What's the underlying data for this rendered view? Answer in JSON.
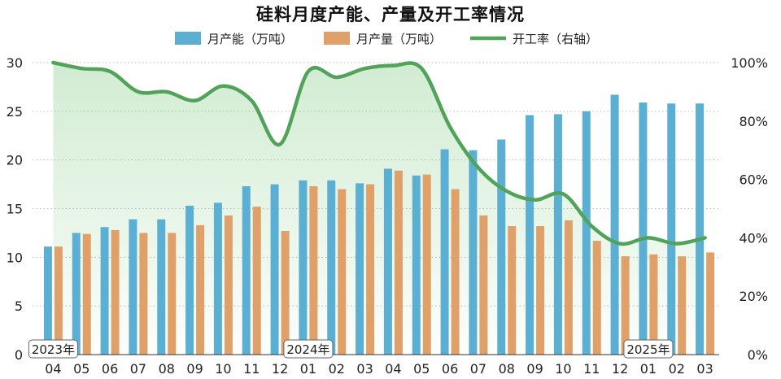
{
  "chart_data": {
    "type": "bar",
    "title": "硅料月度产能、产量及开工率情况",
    "categories": [
      "04",
      "05",
      "06",
      "07",
      "08",
      "09",
      "10",
      "11",
      "12",
      "01",
      "02",
      "03",
      "04",
      "05",
      "06",
      "07",
      "08",
      "09",
      "10",
      "11",
      "12",
      "01",
      "02",
      "03"
    ],
    "year_labels": [
      {
        "label": "2023年",
        "category_index": 0
      },
      {
        "label": "2024年",
        "category_index": 9
      },
      {
        "label": "2025年",
        "category_index": 21
      }
    ],
    "series": [
      {
        "name": "月产能（万吨）",
        "type": "bar",
        "axis": "left",
        "color": "#5AAFD3",
        "values": [
          11.1,
          12.5,
          13.1,
          13.9,
          13.9,
          15.3,
          15.6,
          17.3,
          17.5,
          17.9,
          17.9,
          17.6,
          19.1,
          18.4,
          21.1,
          21.0,
          22.1,
          24.6,
          24.7,
          25.0,
          26.7,
          25.9,
          25.8,
          25.8
        ]
      },
      {
        "name": "月产量（万吨）",
        "type": "bar",
        "axis": "left",
        "color": "#E0A06A",
        "values": [
          11.1,
          12.4,
          12.8,
          12.5,
          12.5,
          13.3,
          14.3,
          15.2,
          12.7,
          17.3,
          17.0,
          17.5,
          18.9,
          18.5,
          17.0,
          14.3,
          13.2,
          13.2,
          13.8,
          11.7,
          10.1,
          10.3,
          10.1,
          10.5
        ]
      },
      {
        "name": "开工率（右轴）",
        "type": "line",
        "axis": "right",
        "color": "#52A35A",
        "values": [
          100,
          98,
          97,
          90,
          90,
          87,
          92,
          87,
          72,
          97,
          95,
          98,
          99,
          98,
          78,
          64,
          56,
          53,
          55,
          44,
          38,
          40,
          38,
          40
        ]
      }
    ],
    "left_axis": {
      "min": 0,
      "max": 30,
      "ticks": [
        0,
        5,
        10,
        15,
        20,
        25,
        30
      ]
    },
    "right_axis": {
      "min": 0,
      "max": 100,
      "ticks": [
        "0%",
        "20%",
        "40%",
        "60%",
        "80%",
        "100%"
      ]
    },
    "grid": "dotted horizontal",
    "legend_position": "top-center",
    "area_fill": "light green under line"
  }
}
